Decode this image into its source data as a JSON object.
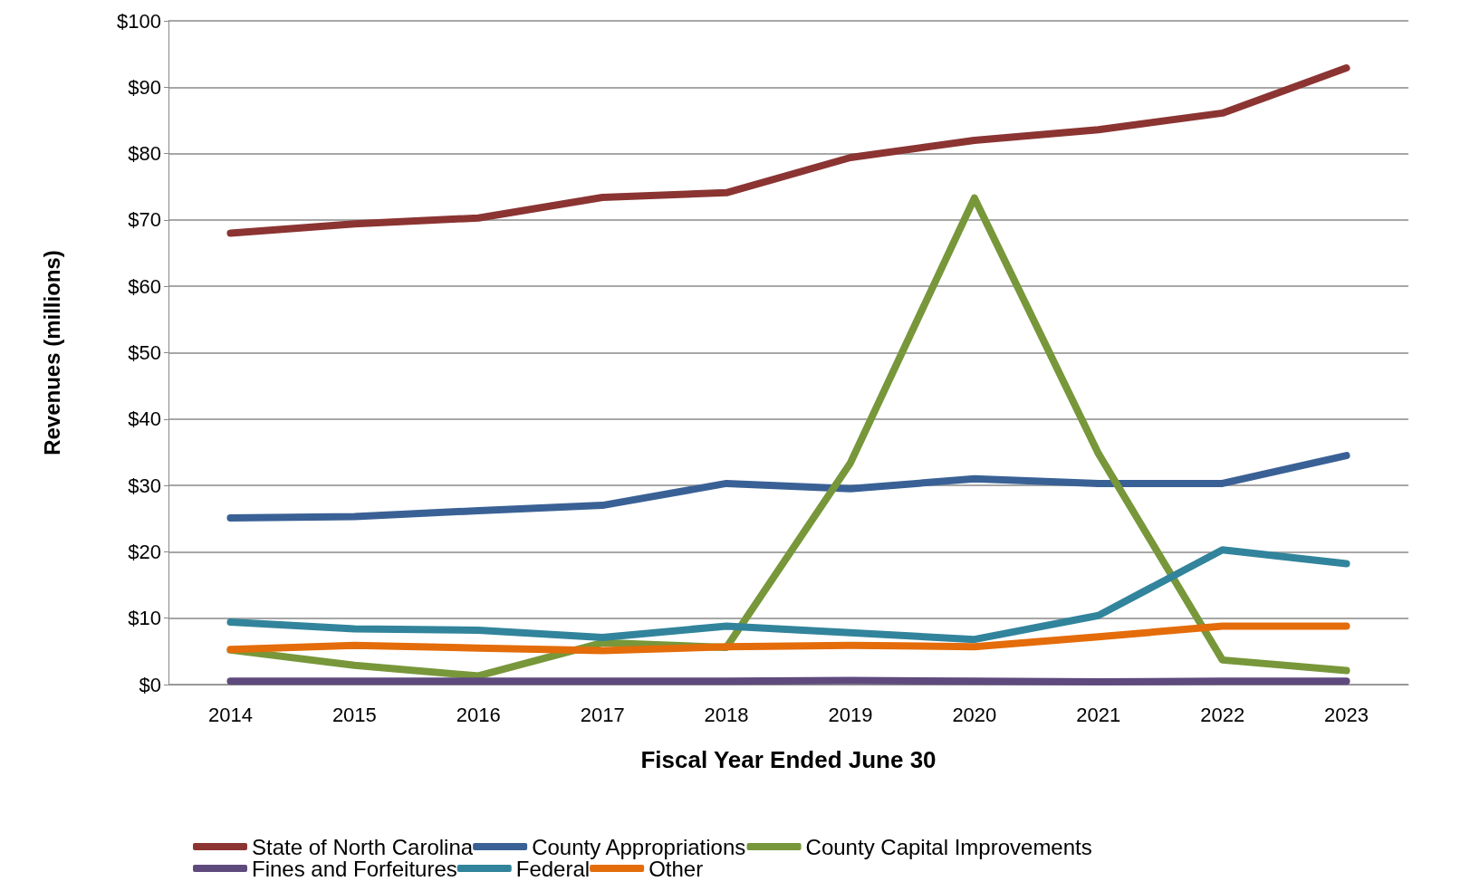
{
  "chart_data": {
    "type": "line",
    "xlabel": "Fiscal Year Ended June 30",
    "ylabel": "Revenues (millions)",
    "categories": [
      "2014",
      "2015",
      "2016",
      "2017",
      "2018",
      "2019",
      "2020",
      "2021",
      "2022",
      "2023"
    ],
    "ylim": [
      0,
      100
    ],
    "yticks": [
      {
        "value": 0,
        "label": "$0"
      },
      {
        "value": 10,
        "label": "$10"
      },
      {
        "value": 20,
        "label": "$20"
      },
      {
        "value": 30,
        "label": "$30"
      },
      {
        "value": 40,
        "label": "$40"
      },
      {
        "value": 50,
        "label": "$50"
      },
      {
        "value": 60,
        "label": "$60"
      },
      {
        "value": 70,
        "label": "$70"
      },
      {
        "value": 80,
        "label": "$80"
      },
      {
        "value": 90,
        "label": "$90"
      },
      {
        "value": 100,
        "label": "$100"
      }
    ],
    "grid": "y",
    "legend": "bottom",
    "marker": "none",
    "line_style": "solid",
    "series": [
      {
        "name": "State of North Carolina",
        "color": "#8b3432",
        "values": [
          68,
          69.4,
          70.3,
          73.4,
          74.1,
          79.4,
          82,
          83.6,
          86.1,
          92.9
        ]
      },
      {
        "name": "County Appropriations",
        "color": "#3a6195",
        "values": [
          25.1,
          25.3,
          26.2,
          27,
          30.3,
          29.5,
          31,
          30.3,
          30.3,
          34.5
        ]
      },
      {
        "name": "County Capital Improvements",
        "color": "#77973a",
        "values": [
          5.2,
          2.9,
          1.3,
          6.3,
          5.6,
          33.4,
          73.3,
          34.8,
          3.7,
          2.1
        ]
      },
      {
        "name": "Fines and Forfeitures",
        "color": "#5f4a7e",
        "values": [
          0.5,
          0.5,
          0.5,
          0.5,
          0.5,
          0.6,
          0.5,
          0.4,
          0.5,
          0.5
        ]
      },
      {
        "name": "Federal",
        "color": "#31849b",
        "values": [
          9.4,
          8.4,
          8.2,
          7.1,
          8.8,
          7.8,
          6.8,
          10.4,
          20.3,
          18.2
        ]
      },
      {
        "name": "Other",
        "color": "#e46c0a",
        "values": [
          5.3,
          5.9,
          5.5,
          5.1,
          5.7,
          5.9,
          5.7,
          7.2,
          8.8,
          8.8
        ]
      }
    ]
  }
}
